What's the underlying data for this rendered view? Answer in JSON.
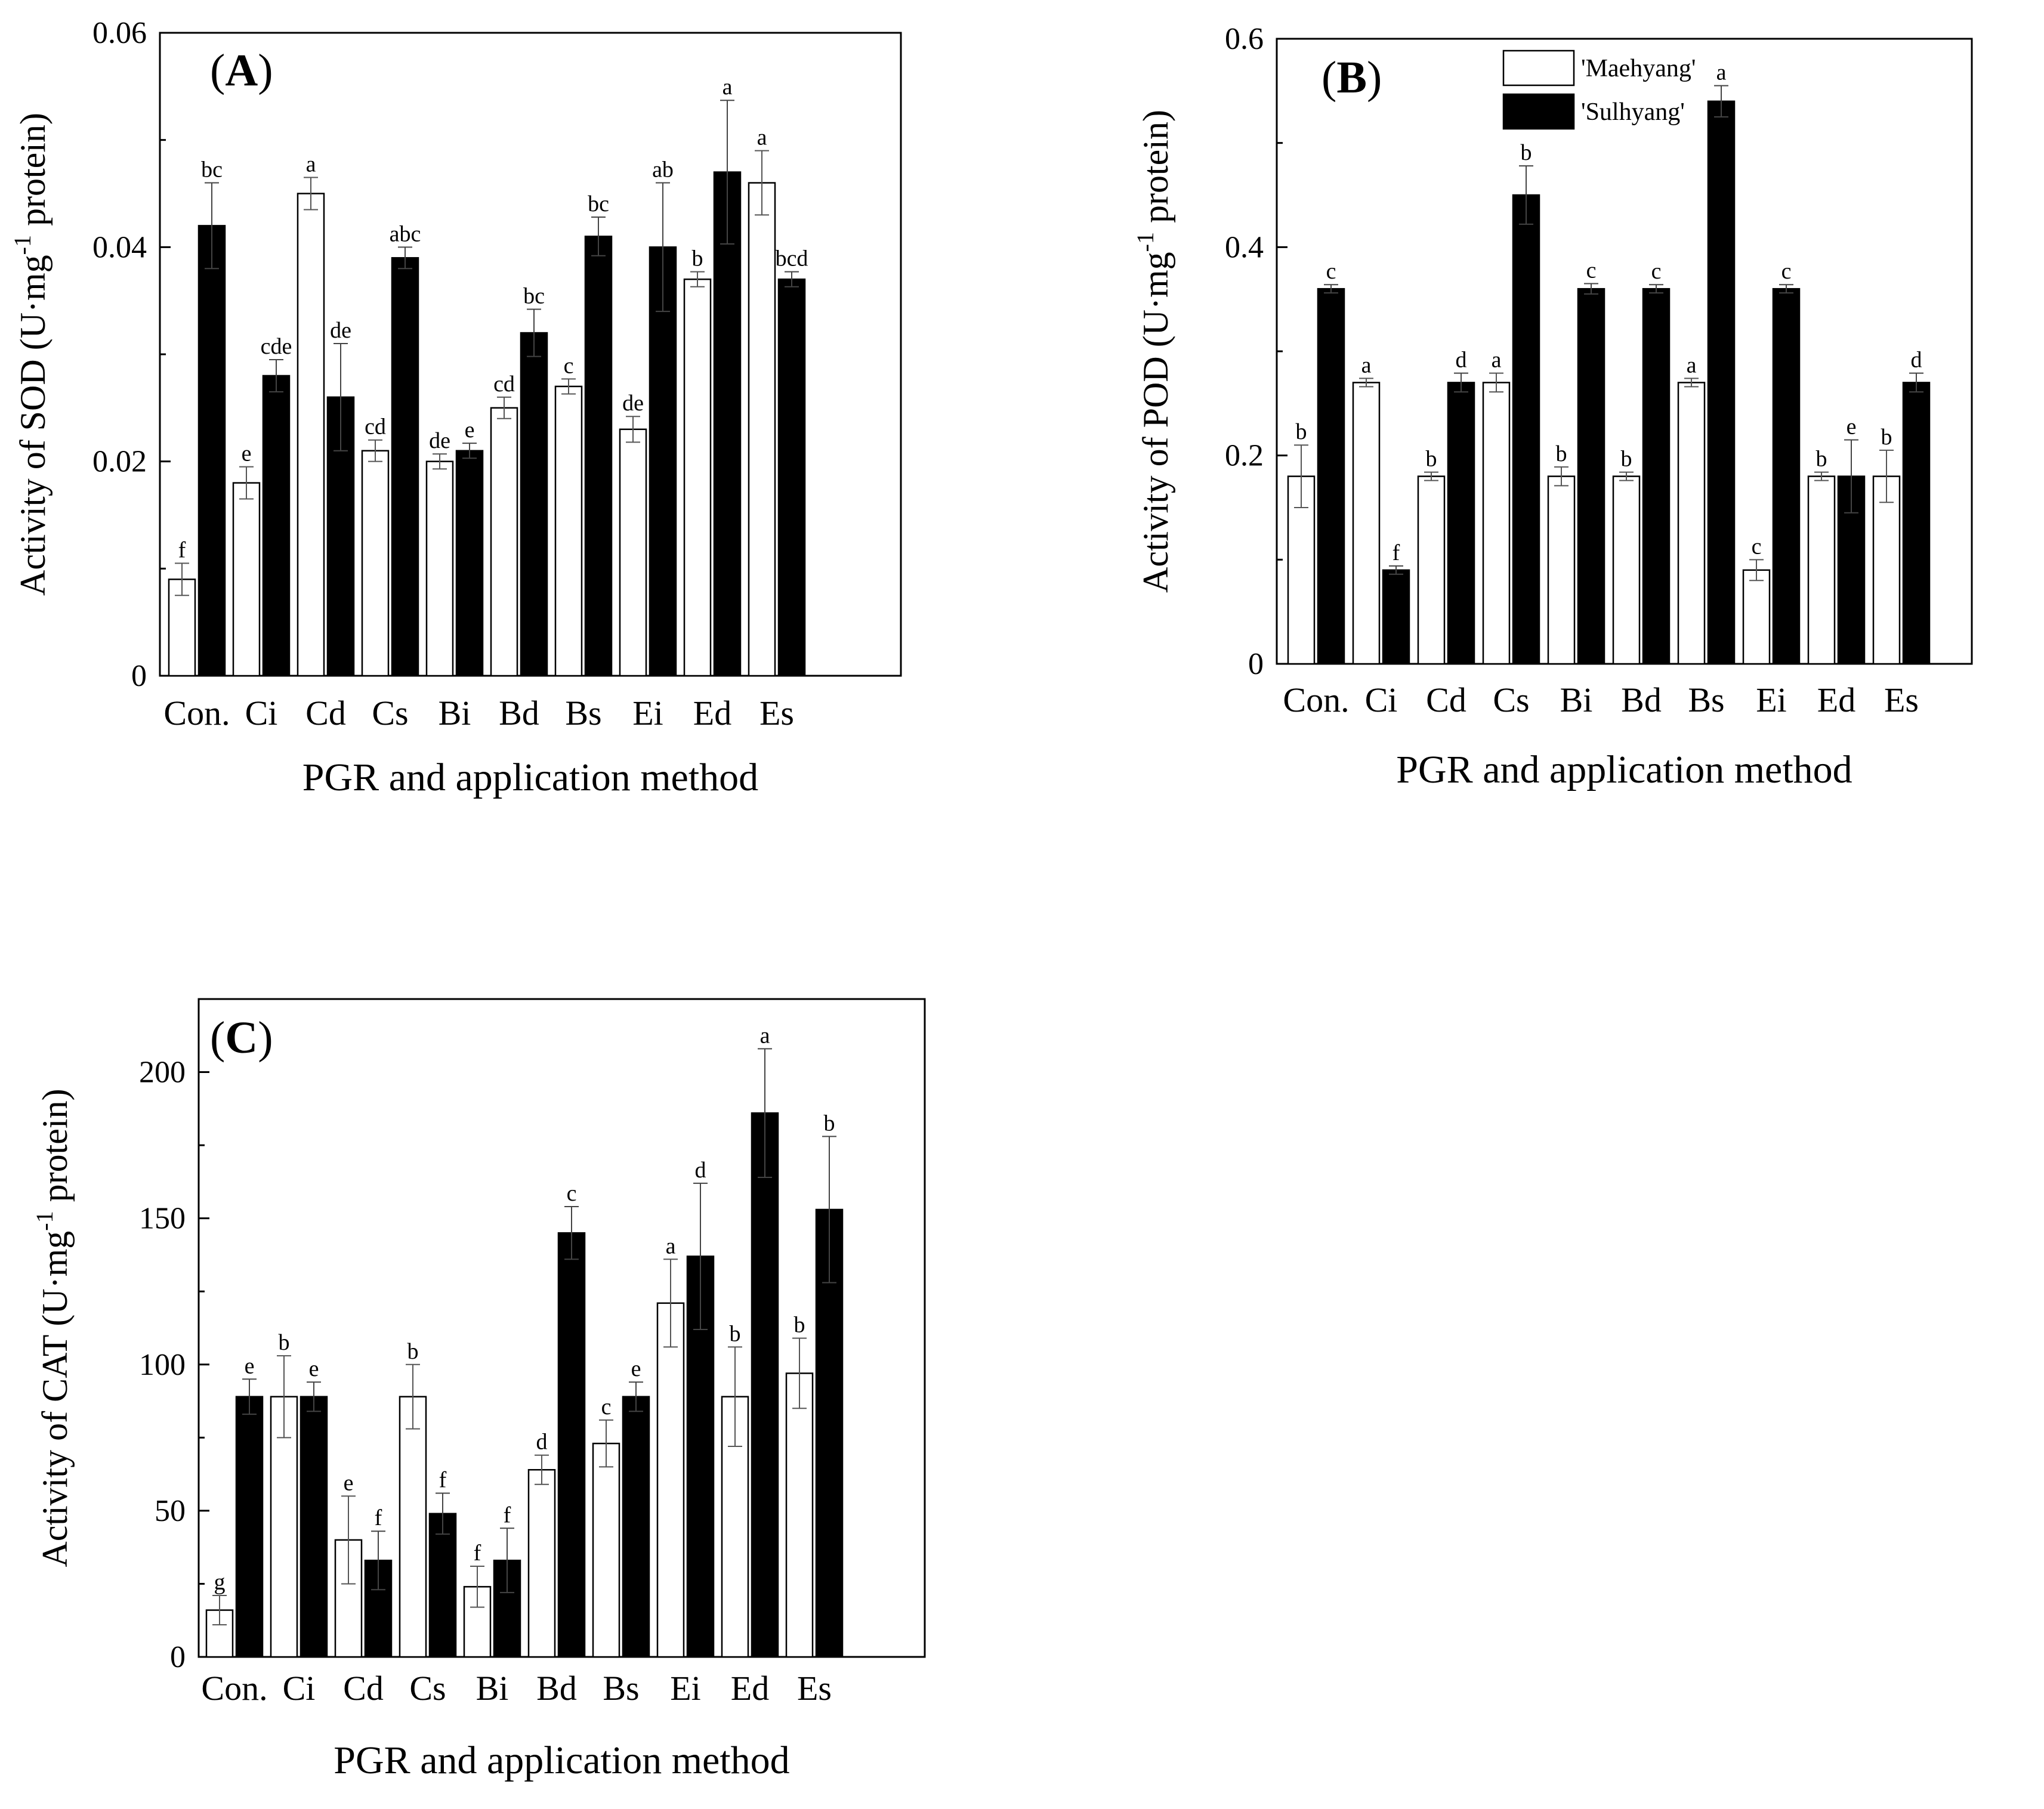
{
  "colors": {
    "maehyang": "#ffffff",
    "sulhyang": "#000000",
    "axis": "#000000"
  },
  "chart_data": [
    {
      "type": "bar",
      "panel": "A",
      "panel_label": "(A)",
      "title": "",
      "xlabel": "PGR and application method",
      "ylabel_prefix": "Activity of SOD (U·mg",
      "ylabel_sup": "-1",
      "ylabel_suffix": " protein)",
      "categories": [
        "Con.",
        "Ci",
        "Cd",
        "Cs",
        "Bi",
        "Bd",
        "Bs",
        "Ei",
        "Ed",
        "Es"
      ],
      "ylim": [
        0,
        0.06
      ],
      "yticks": [
        0,
        0.02,
        0.04,
        0.06
      ],
      "ytick_labels": [
        "0",
        "0.02",
        "0.04",
        "0.06"
      ],
      "series": [
        {
          "name": "'Maehyang'",
          "values": [
            0.009,
            0.018,
            0.045,
            0.021,
            0.02,
            0.025,
            0.027,
            0.023,
            0.037,
            0.046
          ],
          "errors": [
            0.0015,
            0.0015,
            0.0015,
            0.001,
            0.0007,
            0.001,
            0.0007,
            0.0012,
            0.0007,
            0.003
          ],
          "labels": [
            "f",
            "e",
            "a",
            "cd",
            "de",
            "cd",
            "c",
            "de",
            "b",
            "a"
          ]
        },
        {
          "name": "'Sulhyang'",
          "values": [
            0.042,
            0.028,
            0.026,
            0.039,
            0.021,
            0.032,
            0.041,
            0.04,
            0.047,
            0.037
          ],
          "errors": [
            0.004,
            0.0015,
            0.005,
            0.001,
            0.0007,
            0.0022,
            0.0018,
            0.006,
            0.0067,
            0.0007
          ],
          "labels": [
            "bc",
            "cde",
            "de",
            "abc",
            "e",
            "bc",
            "bc",
            "ab",
            "a",
            "bcd"
          ]
        }
      ]
    },
    {
      "type": "bar",
      "panel": "B",
      "panel_label": "(B)",
      "title": "",
      "xlabel": "PGR and application method",
      "ylabel_prefix": "Activity of POD (U·mg",
      "ylabel_sup": "-1",
      "ylabel_suffix": " protein)",
      "categories": [
        "Con.",
        "Ci",
        "Cd",
        "Cs",
        "Bi",
        "Bd",
        "Bs",
        "Ei",
        "Ed",
        "Es"
      ],
      "ylim": [
        0,
        0.6
      ],
      "yticks": [
        0,
        0.2,
        0.4,
        0.6
      ],
      "ytick_labels": [
        "0",
        "0.2",
        "0.4",
        "0.6"
      ],
      "legend": [
        "'Maehyang'",
        "'Sulhyang'"
      ],
      "legend_position": "top-center",
      "series": [
        {
          "name": "'Maehyang'",
          "values": [
            0.18,
            0.27,
            0.18,
            0.27,
            0.18,
            0.18,
            0.27,
            0.09,
            0.18,
            0.18
          ],
          "errors": [
            0.03,
            0.004,
            0.004,
            0.009,
            0.009,
            0.004,
            0.004,
            0.01,
            0.004,
            0.025
          ],
          "labels": [
            "b",
            "a",
            "b",
            "a",
            "b",
            "b",
            "a",
            "c",
            "b",
            "b"
          ]
        },
        {
          "name": "'Sulhyang'",
          "values": [
            0.36,
            0.09,
            0.27,
            0.45,
            0.36,
            0.36,
            0.54,
            0.36,
            0.18,
            0.27
          ],
          "errors": [
            0.004,
            0.004,
            0.009,
            0.028,
            0.005,
            0.004,
            0.015,
            0.004,
            0.035,
            0.009
          ],
          "labels": [
            "c",
            "f",
            "d",
            "b",
            "c",
            "c",
            "a",
            "c",
            "e",
            "d"
          ]
        }
      ]
    },
    {
      "type": "bar",
      "panel": "C",
      "panel_label": "(C)",
      "title": "",
      "xlabel": "PGR and application method",
      "ylabel_prefix": "Activity of CAT (U·mg",
      "ylabel_sup": "-1",
      "ylabel_suffix": " protein)",
      "categories": [
        "Con.",
        "Ci",
        "Cd",
        "Cs",
        "Bi",
        "Bd",
        "Bs",
        "Ei",
        "Ed",
        "Es"
      ],
      "ylim": [
        0,
        225
      ],
      "yticks": [
        0,
        50,
        100,
        150,
        200
      ],
      "ytick_labels": [
        "0",
        "50",
        "100",
        "150",
        "200"
      ],
      "series": [
        {
          "name": "'Maehyang'",
          "values": [
            16,
            89,
            40,
            89,
            24,
            64,
            73,
            121,
            89,
            97
          ],
          "errors": [
            5,
            14,
            15,
            11,
            7,
            5,
            8,
            15,
            17,
            12
          ],
          "labels": [
            "g",
            "b",
            "e",
            "b",
            "f",
            "d",
            "c",
            "a",
            "b",
            "b"
          ]
        },
        {
          "name": "'Sulhyang'",
          "values": [
            89,
            89,
            33,
            49,
            33,
            145,
            89,
            137,
            186,
            153
          ],
          "errors": [
            6,
            5,
            10,
            7,
            11,
            9,
            5,
            25,
            22,
            25
          ],
          "labels": [
            "e",
            "e",
            "f",
            "f",
            "f",
            "c",
            "e",
            "d",
            "a",
            "b"
          ]
        }
      ]
    }
  ]
}
